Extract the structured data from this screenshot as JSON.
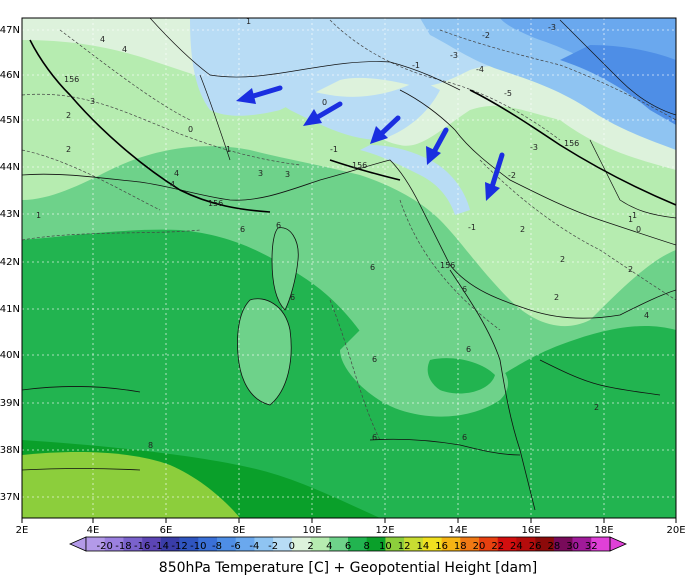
{
  "caption": "850hPa Temperature [C] + Geopotential Height [dam]",
  "lon_labels": [
    "2E",
    "4E",
    "6E",
    "8E",
    "10E",
    "12E",
    "14E",
    "16E",
    "18E",
    "20E"
  ],
  "lat_labels": [
    "47N",
    "46N",
    "45N",
    "44N",
    "43N",
    "42N",
    "41N",
    "40N",
    "39N",
    "38N",
    "37N"
  ],
  "colorbar": {
    "labels": [
      "-20",
      "-18",
      "-16",
      "-14",
      "-12",
      "-10",
      "-8",
      "-6",
      "-4",
      "-2",
      "0",
      "2",
      "4",
      "6",
      "8",
      "10",
      "12",
      "14",
      "16",
      "18",
      "20",
      "22",
      "24",
      "26",
      "28",
      "30",
      "32"
    ],
    "colors": [
      "#b39ae8",
      "#9b80e0",
      "#7a62cc",
      "#5c45b4",
      "#3a3da8",
      "#2f55c0",
      "#3a70d8",
      "#4e8ee6",
      "#6aa8ee",
      "#8fc4f2",
      "#b8dcf5",
      "#ddf2dc",
      "#b6ecb0",
      "#6ed28a",
      "#22b450",
      "#0aa02a",
      "#8cce3c",
      "#c8dc32",
      "#f0e020",
      "#f6b414",
      "#f07814",
      "#e84010",
      "#d20f0f",
      "#b40c0c",
      "#8c0a0a",
      "#780a5a",
      "#a01a9a",
      "#e040d8"
    ]
  },
  "contour_labels": {
    "height": [
      "156",
      "156",
      "156",
      "156",
      "156"
    ],
    "temp": [
      "4",
      "4",
      "3",
      "2",
      "1",
      "0",
      "-1",
      "-2",
      "-3",
      "-3",
      "-5",
      "-4",
      "-3",
      "-1",
      "1",
      "2",
      "3",
      "4",
      "6",
      "6",
      "6",
      "6",
      "6",
      "6",
      "6",
      "6",
      "2",
      "2",
      "4",
      "6",
      "8",
      "2",
      "1",
      "0",
      "1",
      "-1",
      "2",
      "2",
      "3",
      "4",
      "1",
      "0",
      "-2"
    ]
  }
}
